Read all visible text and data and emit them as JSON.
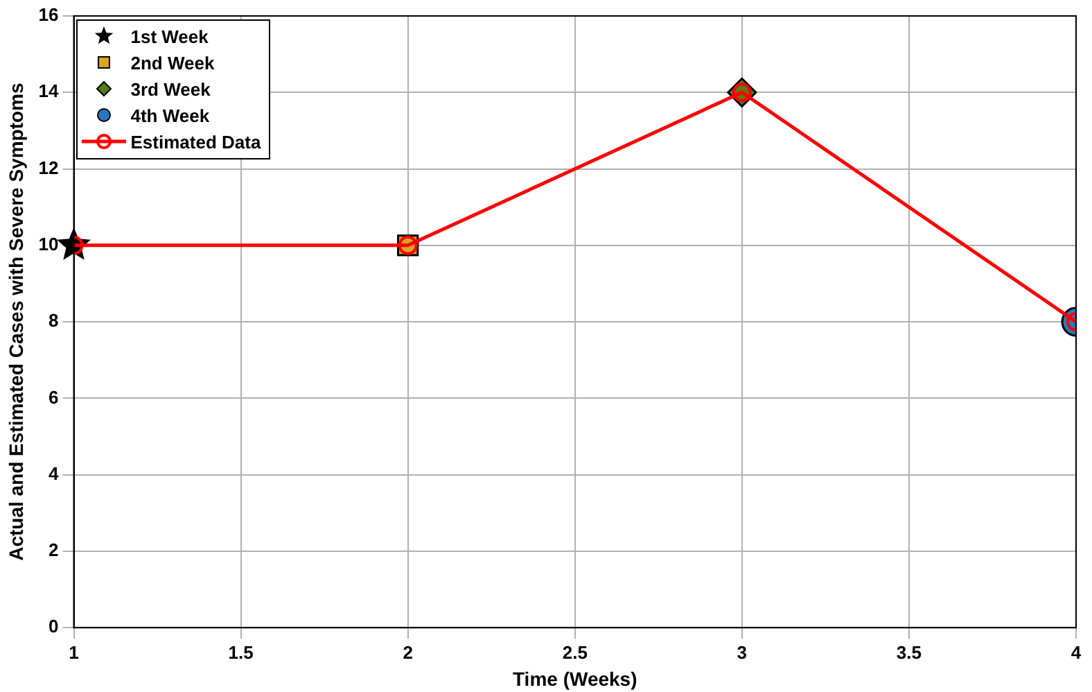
{
  "chart_data": {
    "type": "line",
    "xlabel": "Time (Weeks)",
    "ylabel": "Actual and Estimated Cases with Severe Symptoms",
    "xlim": [
      1,
      4
    ],
    "xticks": [
      1,
      1.5,
      2,
      2.5,
      3,
      3.5,
      4
    ],
    "ylim": [
      0,
      16
    ],
    "yticks": [
      0,
      2,
      4,
      6,
      8,
      10,
      12,
      14,
      16
    ],
    "grid": true,
    "legend": "top left",
    "line_style": "solid",
    "series": [
      {
        "name": "1st Week",
        "type": "scatter",
        "marker": "star",
        "color": "#000000",
        "x": [
          1
        ],
        "values": [
          10
        ]
      },
      {
        "name": "2nd Week",
        "type": "scatter",
        "marker": "square",
        "color": "#d9a520",
        "x": [
          2
        ],
        "values": [
          10
        ]
      },
      {
        "name": "3rd Week",
        "type": "scatter",
        "marker": "diamond",
        "color": "#5a7a1a",
        "x": [
          3
        ],
        "values": [
          14
        ]
      },
      {
        "name": "4th Week",
        "type": "scatter",
        "marker": "circle",
        "color": "#2878c0",
        "x": [
          4
        ],
        "values": [
          8
        ]
      },
      {
        "name": "Estimated Data",
        "type": "line",
        "marker": "circle",
        "color": "#ff0000",
        "x": [
          1,
          2,
          3,
          4
        ],
        "values": [
          10,
          10,
          14,
          8
        ]
      }
    ]
  }
}
